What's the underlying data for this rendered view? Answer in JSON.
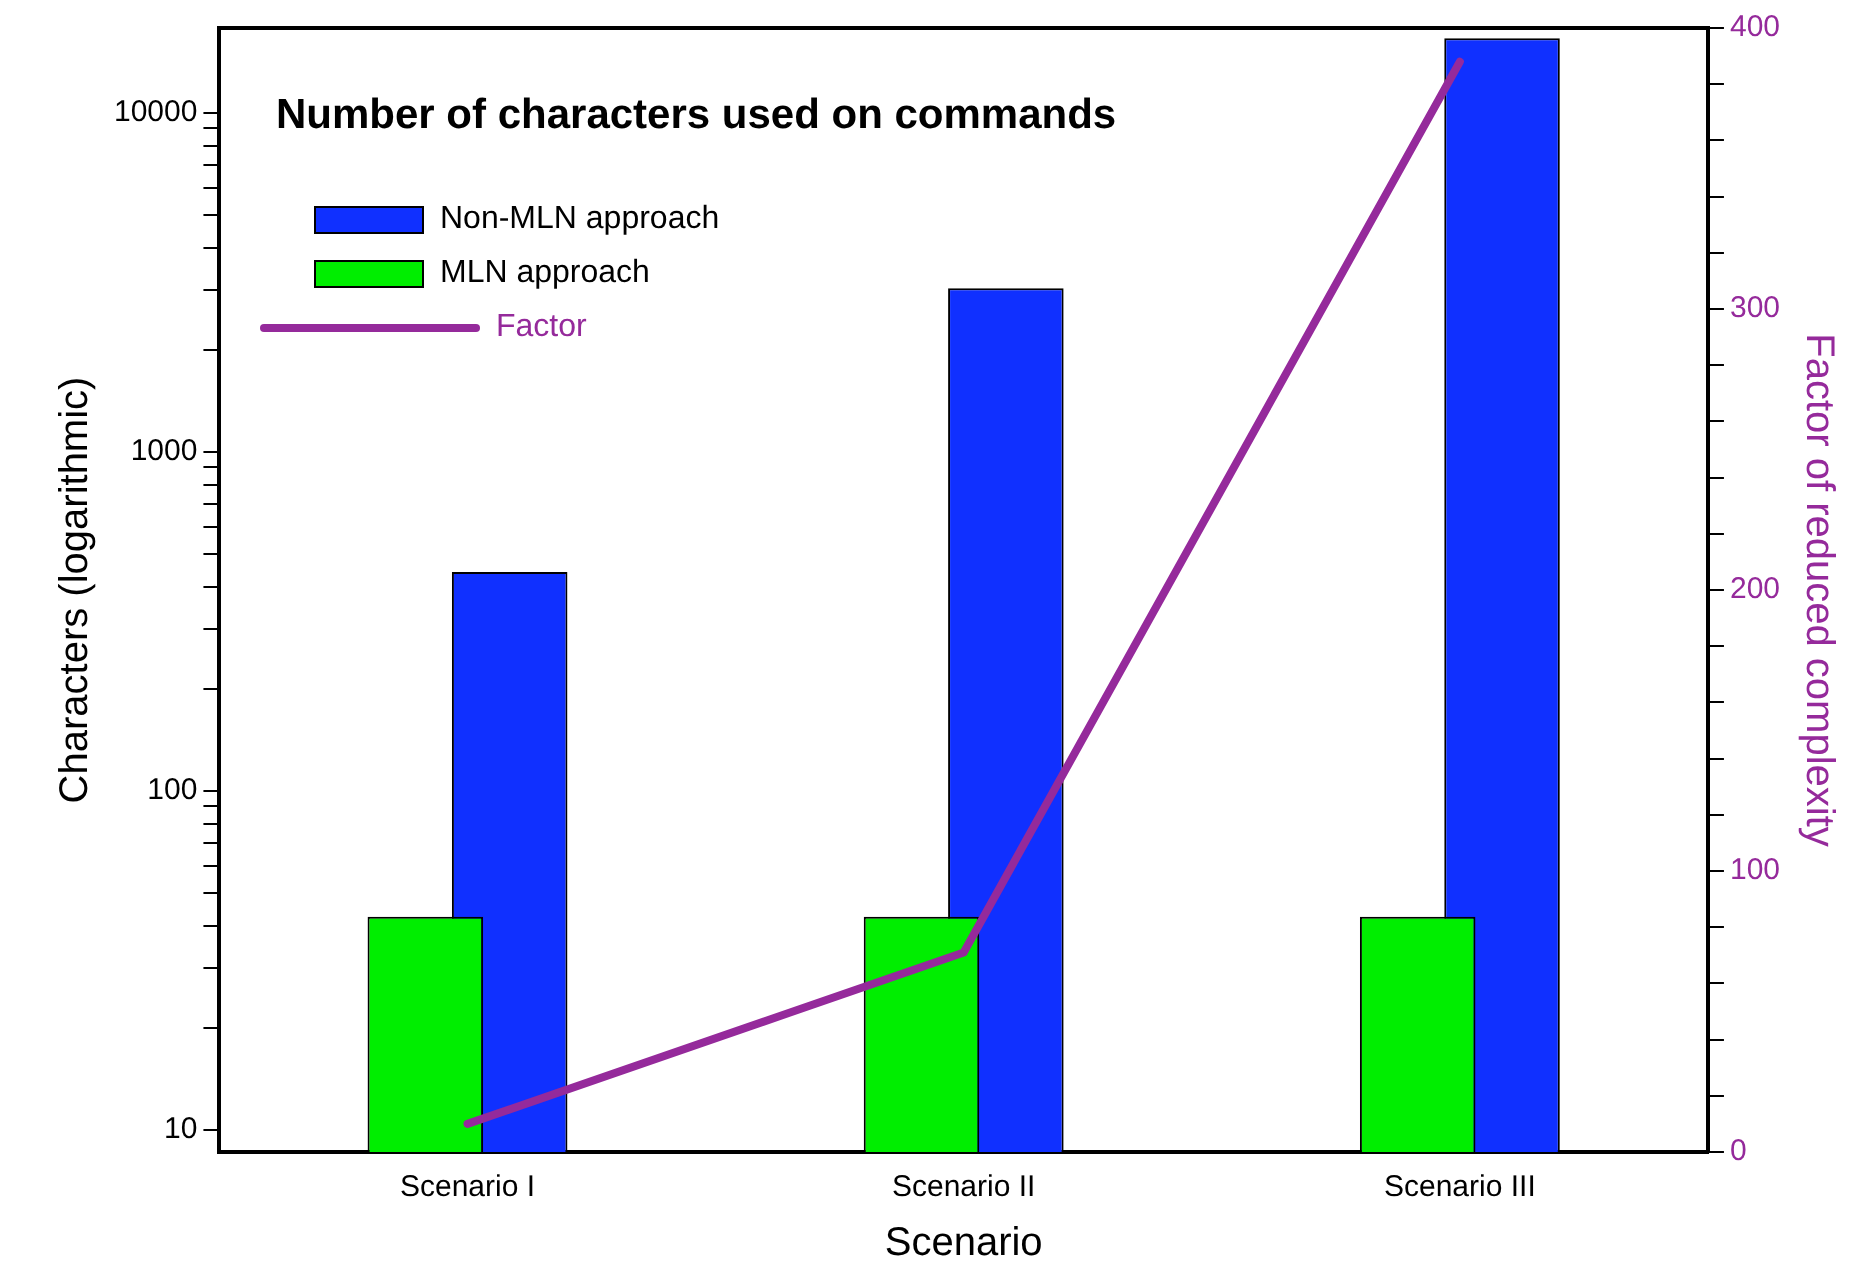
{
  "chart_data": {
    "type": "bar",
    "title": "Number of characters used on commands",
    "xlabel": "Scenario",
    "ylabel": "Characters (logarithmic)",
    "y2label": "Factor of reduced complexity",
    "categories": [
      "Scenario I",
      "Scenario II",
      "Scenario III"
    ],
    "series": [
      {
        "name": "Non-MLN approach",
        "color": "#1030ff",
        "values": [
          442,
          3040,
          16600
        ]
      },
      {
        "name": "MLN approach",
        "color": "#00ee00",
        "values": [
          42.5,
          42.5,
          42.5
        ]
      },
      {
        "name": "Factor",
        "type": "line",
        "axis": "y2",
        "color": "#952a9b",
        "values": [
          10,
          71,
          388
        ]
      }
    ],
    "log": "y",
    "ylim": [
      8.6,
      17800
    ],
    "yticks": [
      10,
      {
        "value": 20,
        "label": null
      },
      {
        "value": 30,
        "label": null
      },
      {
        "value": 40,
        "label": null
      },
      {
        "value": 50,
        "label": null
      },
      {
        "value": 60,
        "label": null
      },
      {
        "value": 70,
        "label": null
      },
      {
        "value": 80,
        "label": null
      },
      {
        "value": 90,
        "label": null
      },
      100,
      {
        "value": 200,
        "label": null
      },
      {
        "value": 300,
        "label": null
      },
      {
        "value": 400,
        "label": null
      },
      {
        "value": 500,
        "label": null
      },
      {
        "value": 600,
        "label": null
      },
      {
        "value": 700,
        "label": null
      },
      {
        "value": 800,
        "label": null
      },
      {
        "value": 900,
        "label": null
      },
      1000,
      {
        "value": 2000,
        "label": null
      },
      {
        "value": 3000,
        "label": null
      },
      {
        "value": 4000,
        "label": null
      },
      {
        "value": 5000,
        "label": null
      },
      {
        "value": 6000,
        "label": null
      },
      {
        "value": 7000,
        "label": null
      },
      {
        "value": 8000,
        "label": null
      },
      {
        "value": 9000,
        "label": null
      },
      10000
    ],
    "y2lim": [
      0,
      400
    ],
    "y2ticks": [
      0,
      {
        "value": 20,
        "label": null
      },
      {
        "value": 40,
        "label": null
      },
      {
        "value": 60,
        "label": null
      },
      {
        "value": 80,
        "label": null
      },
      100,
      {
        "value": 120,
        "label": null
      },
      {
        "value": 140,
        "label": null
      },
      {
        "value": 160,
        "label": null
      },
      {
        "value": 180,
        "label": null
      },
      200,
      {
        "value": 220,
        "label": null
      },
      {
        "value": 240,
        "label": null
      },
      {
        "value": 260,
        "label": null
      },
      {
        "value": 280,
        "label": null
      },
      300,
      {
        "value": 320,
        "label": null
      },
      {
        "value": 340,
        "label": null
      },
      {
        "value": 360,
        "label": null
      },
      {
        "value": 380,
        "label": null
      },
      400
    ],
    "grid": false,
    "legend": "top left",
    "marker": "none",
    "line_style": "solid"
  }
}
